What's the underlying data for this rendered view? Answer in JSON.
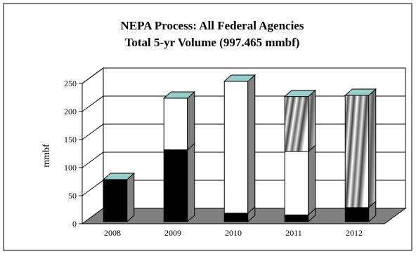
{
  "chart_data": {
    "type": "bar",
    "stacked": true,
    "style": "3d",
    "title": "NEPA Process: All Federal Agencies",
    "subtitle": "Total 5-yr Volume (997.465 mmbf)",
    "xlabel": "",
    "ylabel": "mmbf",
    "categories": [
      "2008",
      "2009",
      "2010",
      "2011",
      "2012"
    ],
    "ylim": [
      0,
      250
    ],
    "yticks": [
      0,
      50,
      100,
      150,
      200,
      250
    ],
    "grid": true,
    "legend": "none",
    "series": [
      {
        "values": [
          75,
          128,
          15,
          12,
          25
        ],
        "color": "#000000",
        "pattern": "solid"
      },
      {
        "values": [
          0,
          92,
          235,
          113,
          0
        ],
        "color": "#ffffff",
        "pattern": "solid"
      },
      {
        "values": [
          0,
          0,
          0,
          98,
          200
        ],
        "color": "#cccccc",
        "pattern": "gradient-hatch"
      }
    ],
    "colors": {
      "floor": "#808080",
      "side": "#808080",
      "cap": "#99cccc"
    }
  }
}
